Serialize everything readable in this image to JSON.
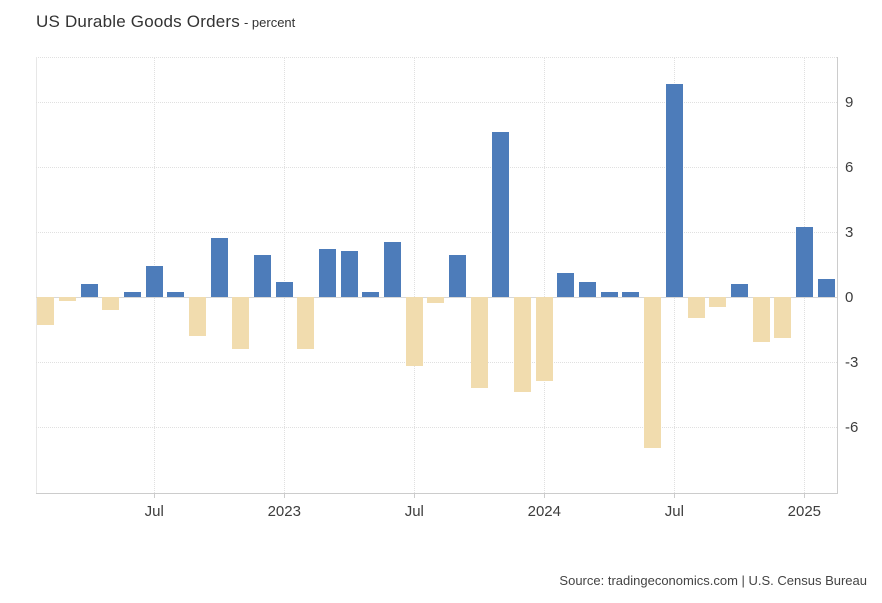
{
  "header": {
    "title": "US Durable Goods Orders",
    "subtitle": "- percent"
  },
  "source": "Source: tradingeconomics.com | U.S. Census Bureau",
  "colors": {
    "bar_positive": "#4d7cba",
    "bar_negative": "#f1dcae",
    "grid": "#e0e0e0",
    "axis": "#cccccc",
    "zero_line": "#d8d8d8",
    "text": "#3d3d3d"
  },
  "chart_data": {
    "type": "bar",
    "title": "US Durable Goods Orders",
    "ylabel": "percent",
    "legend": "none",
    "grid": "dotted",
    "ylim": [
      -9.06,
      11.06
    ],
    "y_ticks": [
      9,
      6,
      3,
      0,
      -3,
      -6
    ],
    "x_ticks": [
      {
        "month": "2022-07",
        "label": "Jul"
      },
      {
        "month": "2023-01",
        "label": "2023"
      },
      {
        "month": "2023-07",
        "label": "Jul"
      },
      {
        "month": "2024-01",
        "label": "2024"
      },
      {
        "month": "2024-07",
        "label": "Jul"
      },
      {
        "month": "2025-01",
        "label": "2025"
      }
    ],
    "x": [
      "2022-02",
      "2022-03",
      "2022-04",
      "2022-05",
      "2022-06",
      "2022-07",
      "2022-08",
      "2022-09",
      "2022-10",
      "2022-11",
      "2022-12",
      "2023-01",
      "2023-02",
      "2023-03",
      "2023-04",
      "2023-05",
      "2023-06",
      "2023-07",
      "2023-08",
      "2023-09",
      "2023-10",
      "2023-11",
      "2023-12",
      "2024-01",
      "2024-02",
      "2024-03",
      "2024-04",
      "2024-05",
      "2024-06",
      "2024-07",
      "2024-08",
      "2024-09",
      "2024-10",
      "2024-11",
      "2024-12",
      "2025-01",
      "2025-02"
    ],
    "values": [
      -1.3,
      -0.2,
      0.6,
      -0.6,
      0.2,
      1.4,
      0.2,
      -1.8,
      2.7,
      -2.4,
      1.9,
      0.7,
      -2.4,
      2.2,
      2.1,
      0.2,
      2.5,
      -3.2,
      -0.3,
      1.9,
      -4.2,
      7.6,
      -4.4,
      -3.9,
      1.1,
      0.7,
      0.2,
      0.2,
      -7.0,
      9.8,
      -1.0,
      -0.5,
      0.6,
      -2.1,
      -1.9,
      3.2,
      0.8
    ]
  }
}
